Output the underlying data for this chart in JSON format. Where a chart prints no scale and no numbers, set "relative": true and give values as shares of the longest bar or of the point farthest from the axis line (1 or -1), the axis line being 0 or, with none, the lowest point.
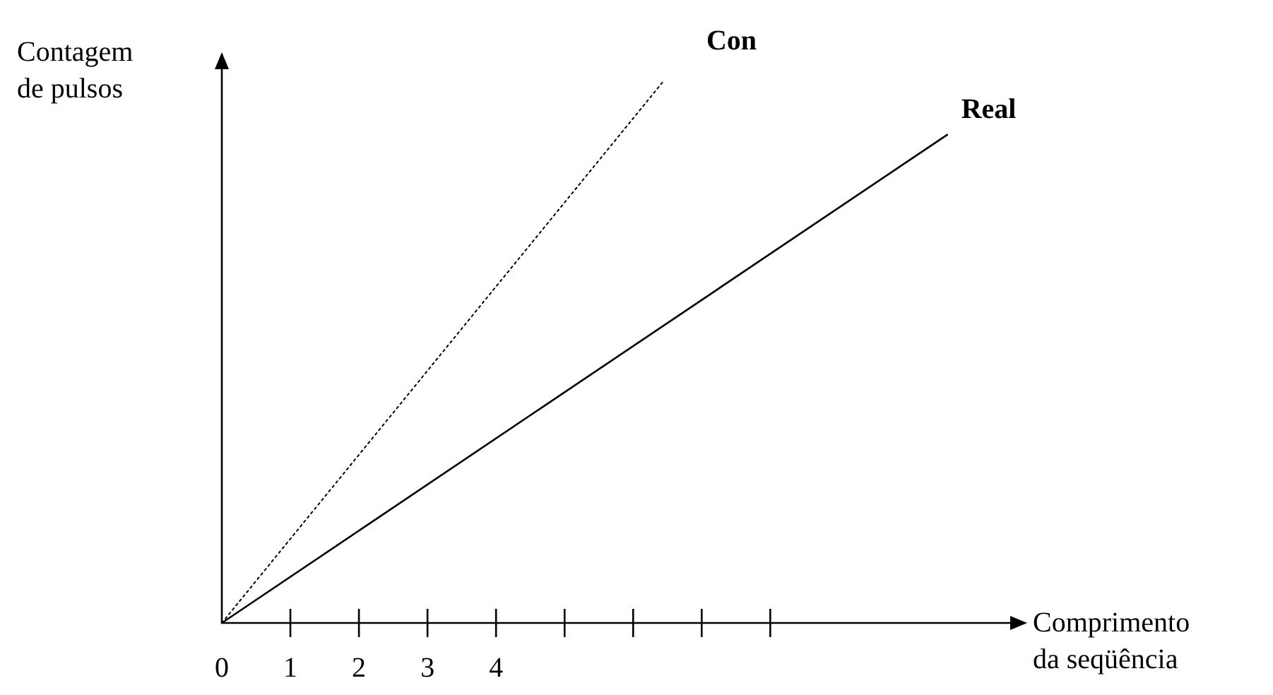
{
  "chart_data": {
    "type": "line",
    "relative": true,
    "xlabel": "Comprimento da seqüência",
    "ylabel": "Contagem de pulsos",
    "xlim": [
      0,
      11.5
    ],
    "xticks": [
      0,
      1,
      2,
      3,
      4,
      {
        "value": 5,
        "label": null
      },
      {
        "value": 6,
        "label": null
      },
      {
        "value": 7,
        "label": null
      },
      {
        "value": 8,
        "label": null
      }
    ],
    "tick_labels": "x",
    "legend": false,
    "grid": false,
    "marker": "none",
    "series": [
      {
        "name": "Con",
        "color": "#000000",
        "line_style": "dotted",
        "x": [
          0,
          6.45
        ],
        "values": [
          0,
          1
        ]
      },
      {
        "name": "Real",
        "color": "#000000",
        "line_style": "solid",
        "x": [
          0,
          10.58
        ],
        "values": [
          0,
          0.9
        ]
      }
    ]
  }
}
